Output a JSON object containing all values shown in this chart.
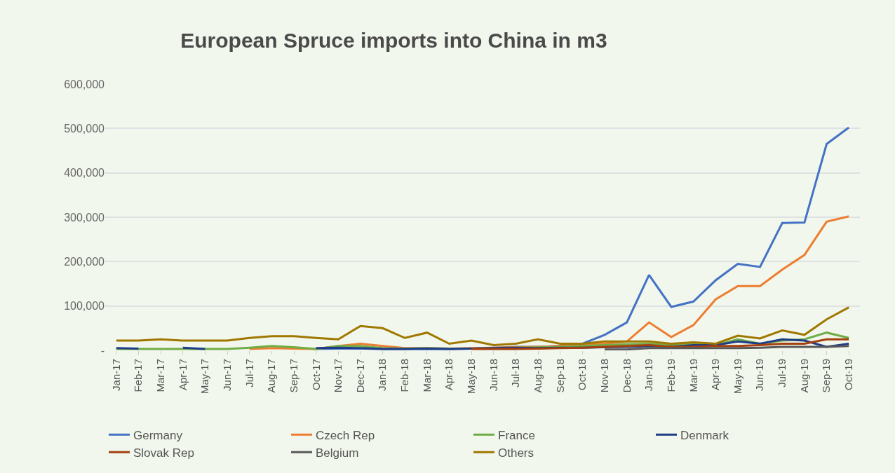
{
  "chart_data": {
    "type": "line",
    "title": "European Spruce imports into China in m3",
    "categories": [
      "Jan-17",
      "Feb-17",
      "Mar-17",
      "Apr-17",
      "May-17",
      "Jun-17",
      "Jul-17",
      "Aug-17",
      "Sep-17",
      "Oct-17",
      "Nov-17",
      "Dec-17",
      "Jan-18",
      "Feb-18",
      "Mar-18",
      "Apr-18",
      "May-18",
      "Jun-18",
      "Jul-18",
      "Aug-18",
      "Sep-18",
      "Oct-18",
      "Nov-18",
      "Dec-18",
      "Jan-19",
      "Feb-19",
      "Mar-19",
      "Apr-19",
      "May-19",
      "Jun-19",
      "Jul-19",
      "Aug-19",
      "Sep-19",
      "Oct-19"
    ],
    "series": [
      {
        "name": "Germany",
        "color": "#4472c4",
        "values": [
          null,
          null,
          null,
          null,
          null,
          null,
          null,
          null,
          null,
          3000,
          4000,
          4000,
          3000,
          3000,
          3000,
          3000,
          4000,
          6000,
          8000,
          8000,
          10000,
          15000,
          35000,
          63000,
          170000,
          98000,
          110000,
          158000,
          195000,
          188000,
          287000,
          288000,
          465000,
          502000
        ]
      },
      {
        "name": "Czech Rep",
        "color": "#ed7d31",
        "values": [
          null,
          null,
          null,
          null,
          null,
          null,
          3000,
          5000,
          4000,
          3000,
          10000,
          15000,
          10000,
          5000,
          5000,
          4000,
          5000,
          6000,
          7000,
          8000,
          10000,
          12000,
          15000,
          20000,
          63000,
          30000,
          57000,
          115000,
          145000,
          145000,
          182000,
          215000,
          290000,
          302000
        ]
      },
      {
        "name": "France",
        "color": "#70ad47",
        "values": [
          3000,
          3000,
          3000,
          3000,
          3000,
          3000,
          6000,
          10000,
          7000,
          3000,
          10000,
          10000,
          5000,
          4000,
          5000,
          4000,
          4000,
          5000,
          6000,
          7000,
          8000,
          10000,
          12000,
          14000,
          15000,
          12000,
          14000,
          12000,
          25000,
          15000,
          22000,
          25000,
          40000,
          28000
        ]
      },
      {
        "name": "Denmark",
        "color": "#1f3c88",
        "values": [
          5000,
          4000,
          null,
          6000,
          3000,
          null,
          null,
          null,
          null,
          5000,
          6000,
          5000,
          3000,
          3000,
          4000,
          3000,
          4000,
          5000,
          6000,
          5000,
          6000,
          6000,
          7000,
          8000,
          10000,
          8000,
          12000,
          12000,
          20000,
          15000,
          25000,
          22000,
          8000,
          15000
        ]
      },
      {
        "name": "Slovak Rep",
        "color": "#a5400f",
        "values": [
          null,
          null,
          null,
          null,
          null,
          null,
          null,
          null,
          null,
          null,
          null,
          null,
          null,
          null,
          null,
          null,
          3000,
          3000,
          3000,
          4000,
          5000,
          6000,
          8000,
          10000,
          12000,
          8000,
          8000,
          10000,
          10000,
          12000,
          15000,
          15000,
          25000,
          25000
        ]
      },
      {
        "name": "Belgium",
        "color": "#595959",
        "values": [
          null,
          null,
          null,
          null,
          null,
          null,
          null,
          null,
          null,
          null,
          null,
          null,
          null,
          null,
          null,
          null,
          null,
          null,
          null,
          null,
          null,
          null,
          2000,
          2000,
          5000,
          5000,
          5000,
          5000,
          5000,
          6000,
          8000,
          8000,
          8000,
          10000
        ]
      },
      {
        "name": "Others",
        "color": "#a07800",
        "values": [
          22000,
          22000,
          25000,
          22000,
          22000,
          22000,
          28000,
          32000,
          32000,
          28000,
          25000,
          55000,
          50000,
          28000,
          40000,
          15000,
          22000,
          12000,
          15000,
          25000,
          15000,
          15000,
          20000,
          20000,
          20000,
          15000,
          18000,
          15000,
          33000,
          27000,
          45000,
          35000,
          70000,
          97000
        ]
      }
    ],
    "ylim": [
      0,
      600000
    ],
    "yticks": [
      {
        "value": 0,
        "label": "-"
      },
      {
        "value": 100000,
        "label": "100,000"
      },
      {
        "value": 200000,
        "label": "200,000"
      },
      {
        "value": 300000,
        "label": "300,000"
      },
      {
        "value": 400000,
        "label": "400,000"
      },
      {
        "value": 500000,
        "label": "500,000"
      },
      {
        "value": 600000,
        "label": "600,000"
      }
    ],
    "grid": "y",
    "legend": "bottom",
    "marker": "none",
    "line_style": "solid"
  }
}
